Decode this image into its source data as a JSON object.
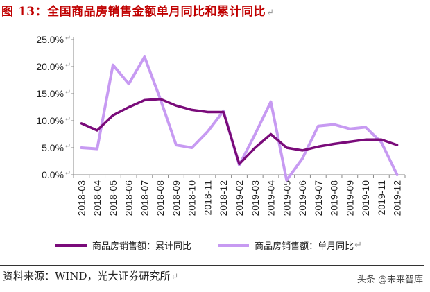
{
  "figure": {
    "title": "图 13：全国商品房销售金额单月同比和累计同比",
    "source": "资料来源：WIND，光大证券研究所",
    "watermark": "头条 @未来智库",
    "paragraph_mark": "↵"
  },
  "colors": {
    "cumulative": "#7a0b7a",
    "monthly": "#c79af2",
    "title": "#c00000"
  },
  "chart_data": {
    "type": "line",
    "title": "",
    "xlabel": "",
    "ylabel": "",
    "ylim": [
      0,
      25
    ],
    "yticks": [
      "25.0%",
      "20.0%",
      "15.0%",
      "10.0%",
      "5.0%",
      "0.0%"
    ],
    "categories": [
      "2018-03",
      "2018-04",
      "2018-05",
      "2018-06",
      "2018-07",
      "2018-08",
      "2018-09",
      "2018-10",
      "2018-11",
      "2018-12",
      "2019-02",
      "2019-03",
      "2019-04",
      "2019-05",
      "2019-06",
      "2019-07",
      "2019-08",
      "2019-09",
      "2019-10",
      "2019-11",
      "2019-12"
    ],
    "series": [
      {
        "name": "商品房销售额：累计同比",
        "values": [
          9.5,
          8.2,
          11.0,
          12.5,
          13.8,
          14.0,
          12.8,
          12.0,
          11.6,
          11.6,
          2.0,
          5.0,
          7.5,
          5.0,
          4.5,
          5.2,
          5.7,
          6.1,
          6.5,
          6.5,
          5.5
        ]
      },
      {
        "name": "商品房销售额：单月同比",
        "values": [
          5.0,
          4.8,
          20.3,
          16.8,
          21.8,
          14.0,
          5.5,
          5.0,
          8.0,
          11.8,
          1.8,
          7.5,
          13.5,
          -1.0,
          3.0,
          9.0,
          9.3,
          8.5,
          8.8,
          6.0,
          0.0
        ]
      }
    ]
  }
}
